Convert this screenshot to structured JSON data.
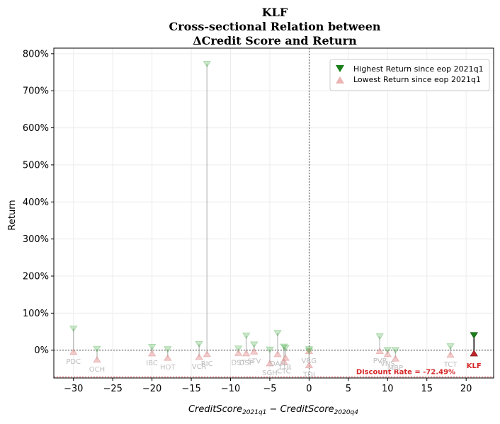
{
  "chart_data": {
    "type": "scatter",
    "title_lines": [
      "KLF",
      "Cross-sectional Relation between",
      "ΔCredit Score and Return"
    ],
    "ylabel": "Return",
    "xlabel_parts": {
      "main": "CreditScore",
      "sub1": "2021q1",
      "minus": " − ",
      "sub2": "2020q4"
    },
    "xlim": [
      -32.5,
      23.5
    ],
    "ylim": [
      -0.75,
      8.15
    ],
    "xticks": [
      -30,
      -25,
      -20,
      -15,
      -10,
      -5,
      0,
      5,
      10,
      15,
      20
    ],
    "xtick_labels": [
      "−30",
      "−25",
      "−20",
      "−15",
      "−10",
      "−5",
      "0",
      "5",
      "10",
      "15",
      "20"
    ],
    "yticks": [
      0,
      1,
      2,
      3,
      4,
      5,
      6,
      7,
      8
    ],
    "ytick_labels": [
      "0%",
      "100%",
      "200%",
      "300%",
      "400%",
      "500%",
      "600%",
      "700%",
      "800%"
    ],
    "grid": true,
    "legend": {
      "position": "top-right",
      "items": [
        {
          "label": "Highest Return since eop 2021q1",
          "marker": "triangle-down",
          "color": "#1a7f1a"
        },
        {
          "label": "Lowest Return since eop 2021q1",
          "marker": "triangle-up",
          "color": "#e8a0a0"
        }
      ]
    },
    "companies": [
      {
        "name": "PDC",
        "x": -30,
        "high": 0.58,
        "low": -0.04
      },
      {
        "name": "OCH",
        "x": -27,
        "high": 0.03,
        "low": -0.25
      },
      {
        "name": "IBC",
        "x": -20,
        "high": 0.08,
        "low": -0.08
      },
      {
        "name": "HOT",
        "x": -18,
        "high": 0.02,
        "low": -0.2
      },
      {
        "name": "VCR",
        "x": -14,
        "high": 0.16,
        "low": -0.18
      },
      {
        "name": "RIC",
        "x": -13,
        "high": 7.72,
        "low": -0.1
      },
      {
        "name": "DST",
        "x": -9,
        "high": 0.04,
        "low": -0.07
      },
      {
        "name": "DSP",
        "x": -8,
        "high": 0.39,
        "low": -0.08
      },
      {
        "name": "STV",
        "x": -7,
        "high": 0.15,
        "low": -0.03
      },
      {
        "name": "SGH",
        "x": -5,
        "high": 0.01,
        "low": -0.35
      },
      {
        "name": "DAH",
        "x": -4,
        "high": 0.46,
        "low": -0.1
      },
      {
        "name": "CTC",
        "x": -3.2,
        "high": 0.09,
        "low": -0.3
      },
      {
        "name": "LTR",
        "x": -3,
        "high": 0.06,
        "low": -0.2
      },
      {
        "name": "VRG",
        "x": 0,
        "high": 0.02,
        "low": -0.02
      },
      {
        "name": "TDI",
        "x": 0,
        "high": -0.02,
        "low": -0.4
      },
      {
        "name": "PVP",
        "x": 9,
        "high": 0.37,
        "low": -0.02
      },
      {
        "name": "VNS",
        "x": 10,
        "high": 0.0,
        "low": -0.1
      },
      {
        "name": "MBP",
        "x": 11,
        "high": 0.0,
        "low": -0.22
      },
      {
        "name": "TCT",
        "x": 18,
        "high": 0.1,
        "low": -0.12
      }
    ],
    "target": {
      "name": "KLF",
      "x": 21,
      "high": 0.4,
      "low": -0.08
    },
    "discount_rate": {
      "value": -0.7249,
      "label": "Discount Rate = -72.49%"
    }
  }
}
